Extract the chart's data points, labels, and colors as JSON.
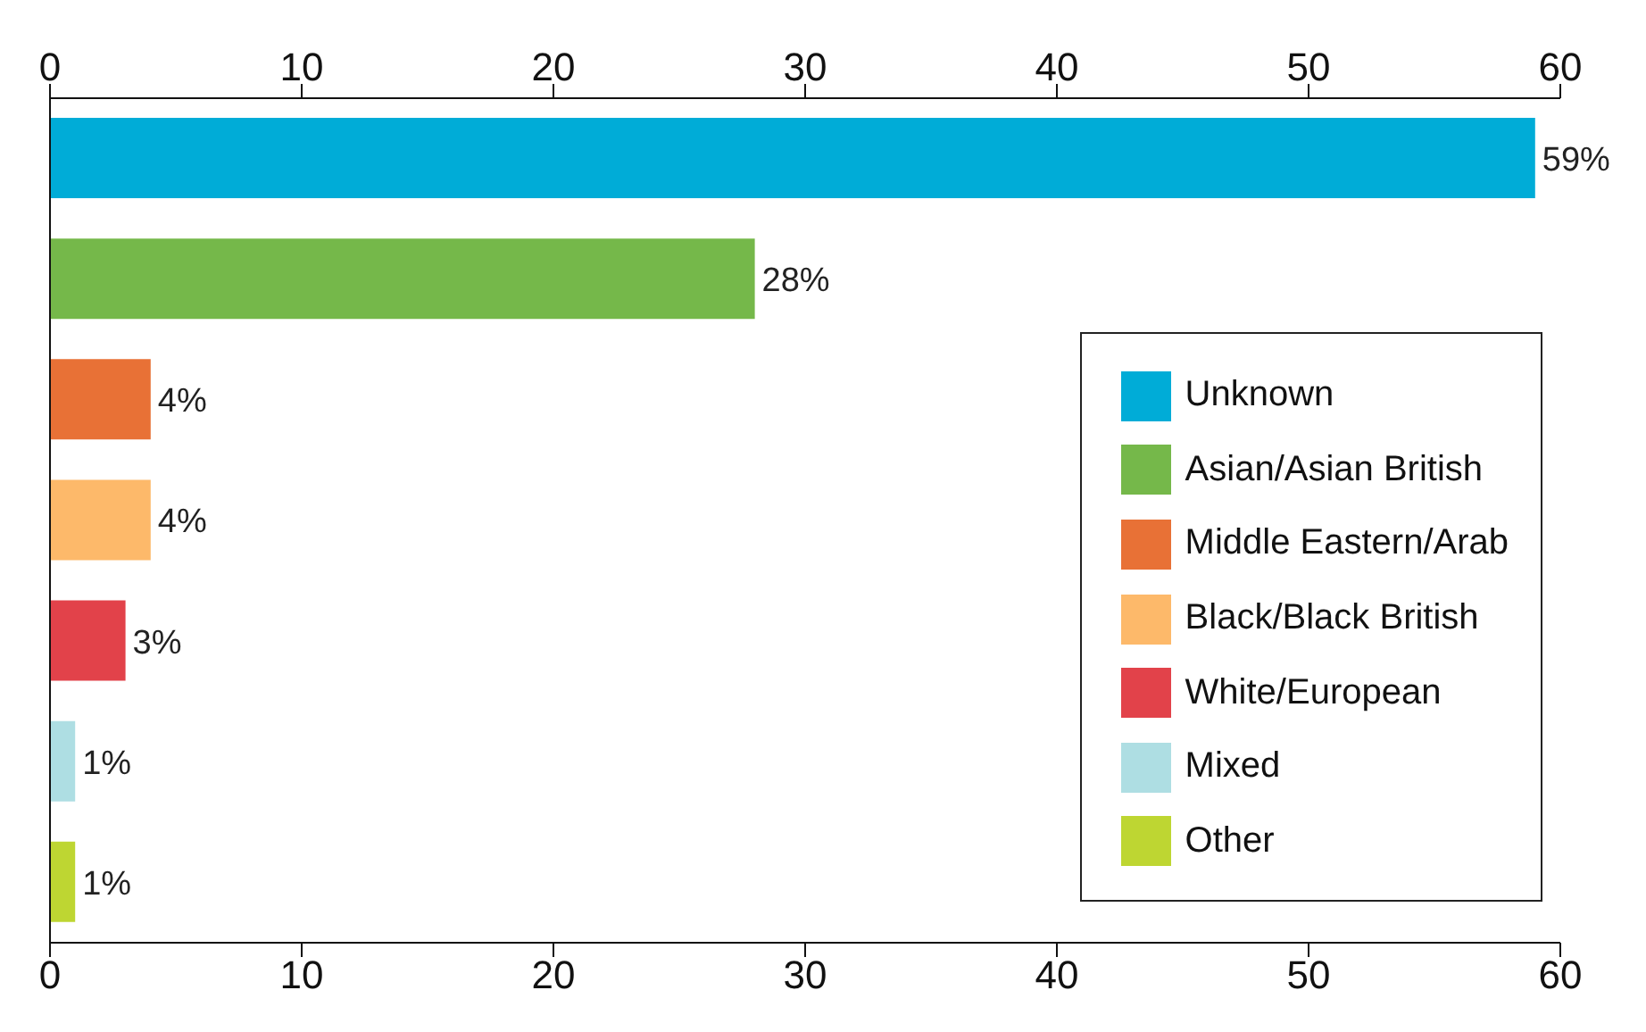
{
  "chart_data": {
    "type": "bar",
    "orientation": "horizontal",
    "stacked": true,
    "categories": [
      null,
      null,
      null,
      null,
      null,
      null,
      null
    ],
    "series": [
      {
        "name": "Unknown",
        "color": "#00acd7",
        "values": [
          59,
          null,
          null,
          null,
          null,
          null,
          null
        ],
        "value_labels": [
          "59%",
          null,
          null,
          null,
          null,
          null,
          null
        ]
      },
      {
        "name": "Asian/Asian British",
        "color": "#75b84a",
        "values": [
          null,
          28,
          null,
          null,
          null,
          null,
          null
        ],
        "value_labels": [
          null,
          "28%",
          null,
          null,
          null,
          null,
          null
        ]
      },
      {
        "name": "Middle Eastern/Arab",
        "color": "#e87136",
        "values": [
          null,
          null,
          4,
          null,
          null,
          null,
          null
        ],
        "value_labels": [
          null,
          null,
          "4%",
          null,
          null,
          null,
          null
        ]
      },
      {
        "name": "Black/Black British",
        "color": "#fdb96a",
        "values": [
          null,
          null,
          null,
          4,
          null,
          null,
          null
        ],
        "value_labels": [
          null,
          null,
          null,
          "4%",
          null,
          null,
          null
        ]
      },
      {
        "name": "White/European",
        "color": "#e2424a",
        "values": [
          null,
          null,
          null,
          null,
          3,
          null,
          null
        ],
        "value_labels": [
          null,
          null,
          null,
          null,
          "3%",
          null,
          null
        ]
      },
      {
        "name": "Mixed",
        "color": "#aedee3",
        "values": [
          null,
          null,
          null,
          null,
          null,
          1,
          null
        ],
        "value_labels": [
          null,
          null,
          null,
          null,
          null,
          "1%",
          null
        ]
      },
      {
        "name": "Other",
        "color": "#bed632",
        "values": [
          null,
          null,
          null,
          null,
          null,
          null,
          1
        ],
        "value_labels": [
          null,
          null,
          null,
          null,
          null,
          null,
          "1%"
        ]
      }
    ],
    "xlim": [
      0,
      60
    ],
    "xticks": [
      0,
      10,
      20,
      30,
      40,
      50,
      60
    ],
    "x2lim": [
      0,
      60
    ],
    "x2ticks": [
      0,
      10,
      20,
      30,
      40,
      50,
      60
    ],
    "tick_labels": "x",
    "legend": "right",
    "grid": false
  }
}
